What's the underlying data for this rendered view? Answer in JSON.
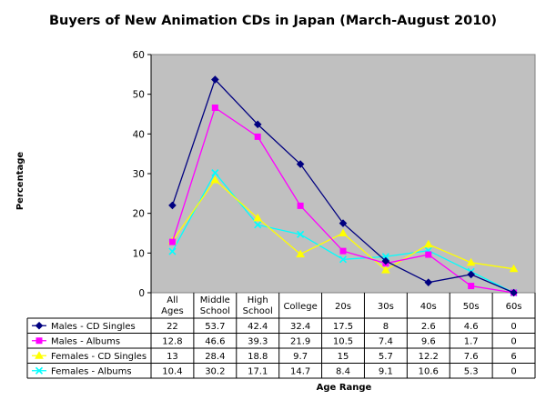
{
  "chart_data": {
    "type": "line",
    "title": "Buyers of New Animation CDs in Japan (March-August 2010)",
    "xlabel": "Age Range",
    "ylabel": "Percentage",
    "ylim": [
      0,
      60
    ],
    "yticks": [
      "0",
      "10",
      "20",
      "30",
      "40",
      "50",
      "60"
    ],
    "categories": [
      "All Ages",
      "Middle School",
      "High School",
      "College",
      "20s",
      "30s",
      "40s",
      "50s",
      "60s"
    ],
    "grid": false,
    "plot_background": "#c0c0c0",
    "legend_placement": "data-table-left",
    "series": [
      {
        "name": "Males - CD Singles",
        "color": "#000080",
        "marker": "diamond",
        "values": [
          22,
          53.7,
          42.4,
          32.4,
          17.5,
          8,
          2.6,
          4.6,
          0
        ],
        "labels": [
          "22",
          "53.7",
          "42.4",
          "32.4",
          "17.5",
          "8",
          "2.6",
          "4.6",
          "0"
        ]
      },
      {
        "name": "Males - Albums",
        "color": "#ff00ff",
        "marker": "square",
        "values": [
          12.8,
          46.6,
          39.3,
          21.9,
          10.5,
          7.4,
          9.6,
          1.7,
          0
        ],
        "labels": [
          "12.8",
          "46.6",
          "39.3",
          "21.9",
          "10.5",
          "7.4",
          "9.6",
          "1.7",
          "0"
        ]
      },
      {
        "name": "Females - CD Singles",
        "color": "#ffff00",
        "marker": "triangle",
        "values": [
          13,
          28.4,
          18.8,
          9.7,
          15,
          5.7,
          12.2,
          7.6,
          6
        ],
        "labels": [
          "13",
          "28.4",
          "18.8",
          "9.7",
          "15",
          "5.7",
          "12.2",
          "7.6",
          "6"
        ]
      },
      {
        "name": "Females - Albums",
        "color": "#00ffff",
        "marker": "x",
        "values": [
          10.4,
          30.2,
          17.1,
          14.7,
          8.4,
          9.1,
          10.6,
          5.3,
          0
        ],
        "labels": [
          "10.4",
          "30.2",
          "17.1",
          "14.7",
          "8.4",
          "9.1",
          "10.6",
          "5.3",
          "0"
        ]
      }
    ]
  }
}
